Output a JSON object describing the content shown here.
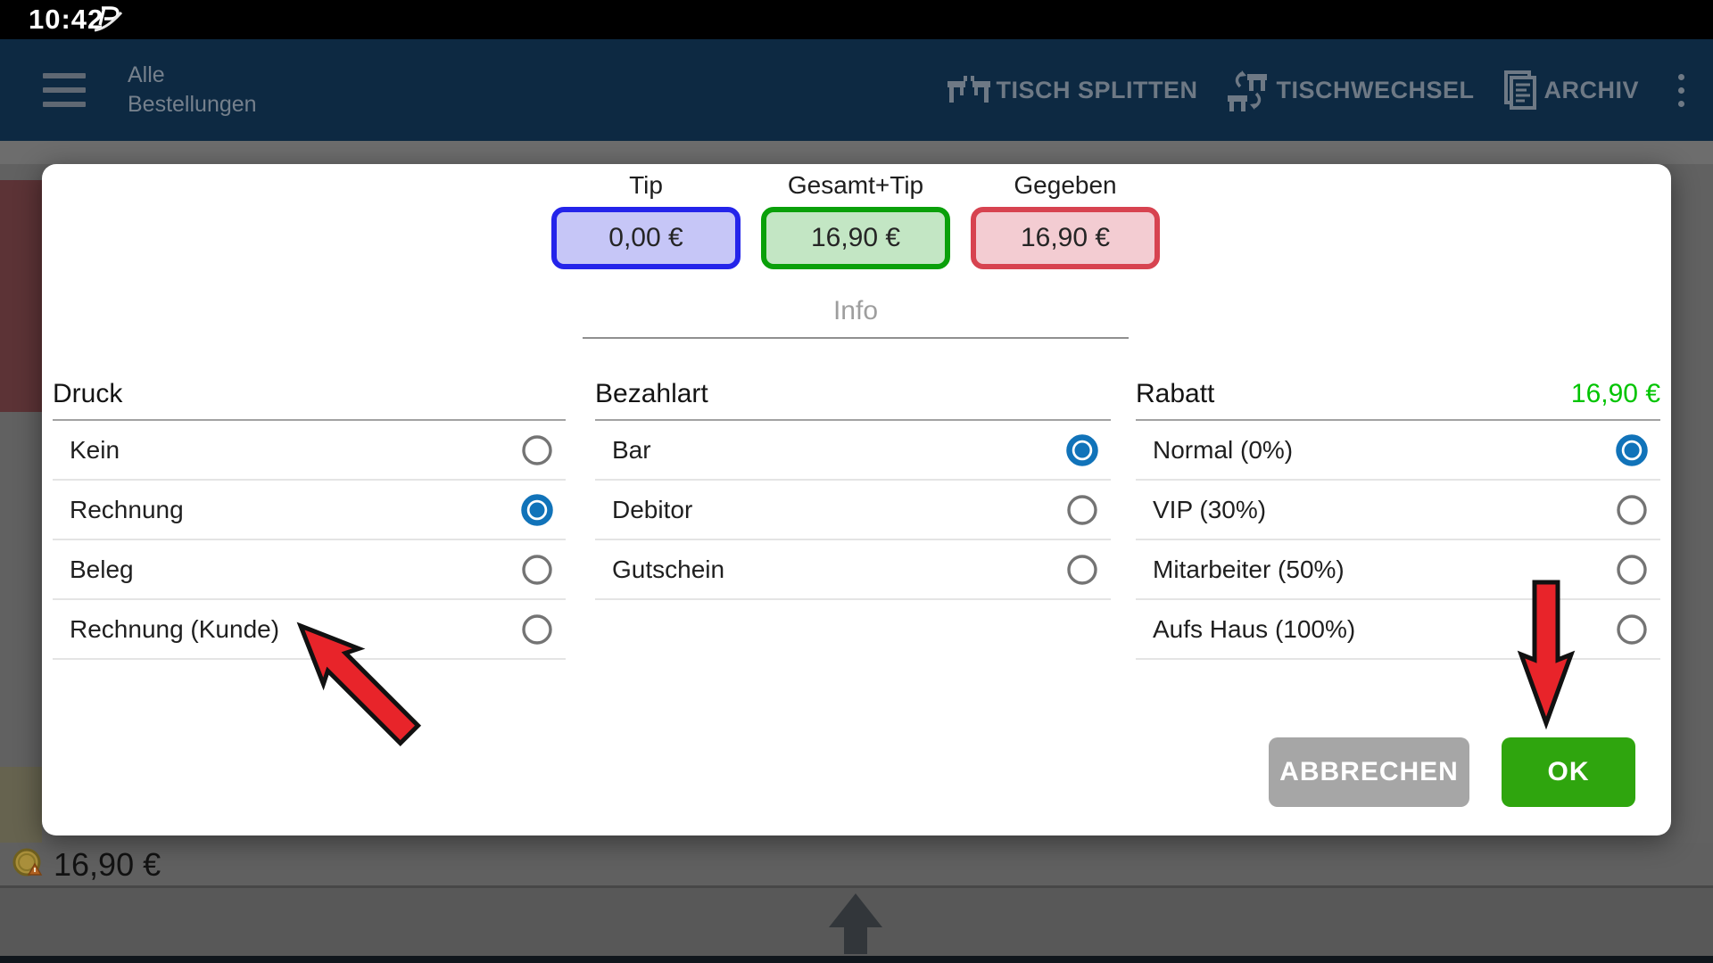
{
  "status_bar": {
    "time": "10:42",
    "icon": "p-swoosh-notification-icon"
  },
  "app_bar": {
    "title_line1": "Alle",
    "title_line2": "Bestellungen",
    "actions": [
      {
        "id": "tisch-splitten",
        "label": "TISCH SPLITTEN",
        "icon": "table-split-icon"
      },
      {
        "id": "tischwechsel",
        "label": "TISCHWECHSEL",
        "icon": "table-swap-icon"
      },
      {
        "id": "archiv",
        "label": "ARCHIV",
        "icon": "archive-document-icon"
      }
    ]
  },
  "dialog": {
    "amount_boxes": [
      {
        "id": "tip",
        "label": "Tip",
        "value": "0,00 €",
        "border": "#2424ea",
        "bg": "#c6c6f7"
      },
      {
        "id": "gesamt-tip",
        "label": "Gesamt+Tip",
        "value": "16,90 €",
        "border": "#0aa00a",
        "bg": "#c3e6c4"
      },
      {
        "id": "gegeben",
        "label": "Gegeben",
        "value": "16,90 €",
        "border": "#d74350",
        "bg": "#f3ccd2"
      }
    ],
    "info_placeholder": "Info",
    "columns": [
      {
        "id": "druck",
        "title": "Druck",
        "title_value": "",
        "options": [
          {
            "label": "Kein",
            "selected": false
          },
          {
            "label": "Rechnung",
            "selected": true
          },
          {
            "label": "Beleg",
            "selected": false
          },
          {
            "label": "Rechnung (Kunde)",
            "selected": false
          }
        ]
      },
      {
        "id": "bezahlart",
        "title": "Bezahlart",
        "title_value": "",
        "options": [
          {
            "label": "Bar",
            "selected": true
          },
          {
            "label": "Debitor",
            "selected": false
          },
          {
            "label": "Gutschein",
            "selected": false
          }
        ]
      },
      {
        "id": "rabatt",
        "title": "Rabatt",
        "title_value": "16,90 €",
        "options": [
          {
            "label": "Normal (0%)",
            "selected": true
          },
          {
            "label": "VIP (30%)",
            "selected": false
          },
          {
            "label": "Mitarbeiter (50%)",
            "selected": false
          },
          {
            "label": "Aufs Haus (100%)",
            "selected": false
          }
        ]
      }
    ],
    "buttons": {
      "cancel": "ABBRECHEN",
      "ok": "OK"
    }
  },
  "background": {
    "order_total": "16,90 €",
    "coin_icon": "coin-warning-icon",
    "nav_icon": "scroll-up-arrow-icon"
  },
  "colors": {
    "appbar_bg": "#0d2942",
    "appbar_fg": "#6e7985",
    "radio_selected": "#1173b9",
    "radio_unselected": "#747474",
    "ok_green": "#2fa50e",
    "cancel_grey": "#a6a6a6",
    "rabatt_amount_green": "#00c400",
    "annotation_arrow_red": "#e8242a"
  }
}
